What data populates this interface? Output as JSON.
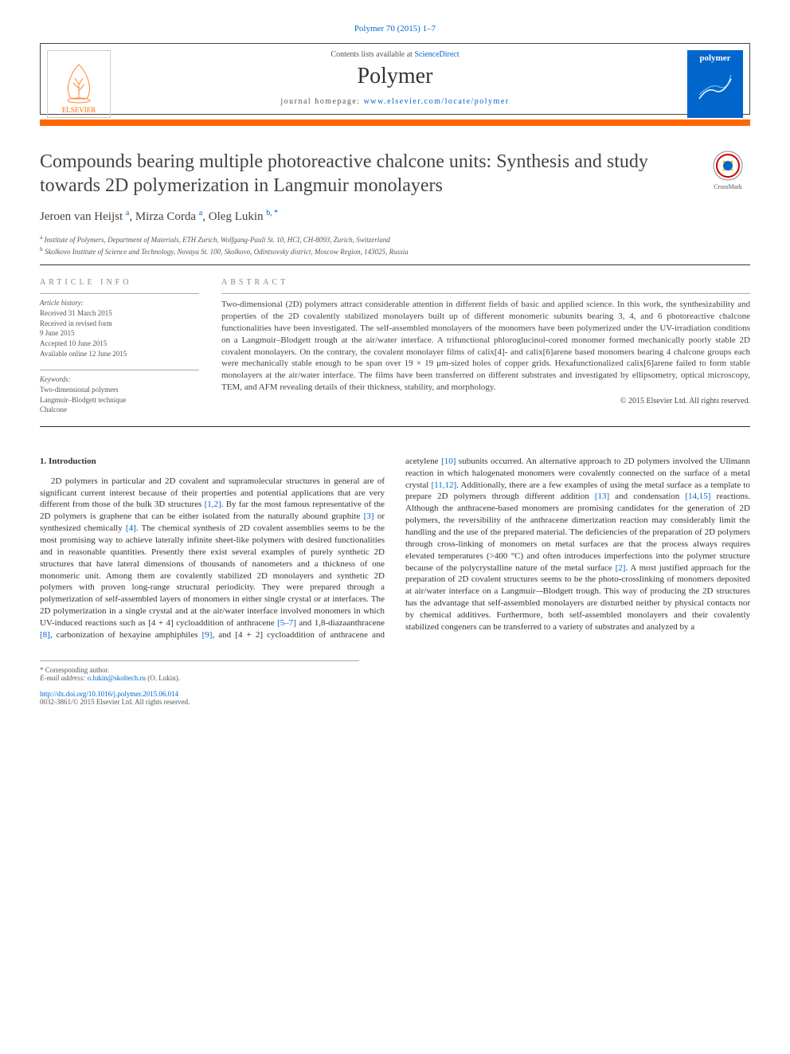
{
  "journal_ref": "Polymer 70 (2015) 1–7",
  "header": {
    "contents_prefix": "Contents lists available at ",
    "contents_link": "ScienceDirect",
    "journal_name": "Polymer",
    "homepage_prefix": "journal homepage: ",
    "homepage_link": "www.elsevier.com/locate/polymer",
    "elsevier_label": "ELSEVIER",
    "cover_title": "polymer"
  },
  "colors": {
    "link": "#0066cc",
    "accent_bar": "#ff6600",
    "text": "#333333",
    "muted": "#555555"
  },
  "title": "Compounds bearing multiple photoreactive chalcone units: Synthesis and study towards 2D polymerization in Langmuir monolayers",
  "crossmark_label": "CrossMark",
  "authors_html": "Jeroen van Heijst <sup>a</sup>, Mirza Corda <sup>a</sup>, Oleg Lukin <sup>b, *</sup>",
  "affiliations": {
    "a": "Institute of Polymers, Department of Materials, ETH Zurich, Wolfgang-Pauli St. 10, HCI, CH-8093, Zurich, Switzerland",
    "b": "Skolkovo Institute of Science and Technology, Novaya St. 100, Skolkovo, Odintsovsky district, Moscow Region, 143025, Russia"
  },
  "article_info": {
    "section_label": "ARTICLE INFO",
    "history_label": "Article history:",
    "history": [
      "Received 31 March 2015",
      "Received in revised form",
      "9 June 2015",
      "Accepted 10 June 2015",
      "Available online 12 June 2015"
    ],
    "keywords_label": "Keywords:",
    "keywords": [
      "Two-dimensional polymers",
      "Langmuir–Blodgett technique",
      "Chalcone"
    ]
  },
  "abstract": {
    "section_label": "ABSTRACT",
    "text": "Two-dimensional (2D) polymers attract considerable attention in different fields of basic and applied science. In this work, the synthesizability and properties of the 2D covalently stabilized monolayers built up of different monomeric subunits bearing 3, 4, and 6 photoreactive chalcone functionalities have been investigated. The self-assembled monolayers of the monomers have been polymerized under the UV-irradiation conditions on a Langmuir–Blodgett trough at the air/water interface. A trifunctional phloroglucinol-cored monomer formed mechanically poorly stable 2D covalent monolayers. On the contrary, the covalent monolayer films of calix[4]- and calix[6]arene based monomers bearing 4 chalcone groups each were mechanically stable enough to be span over 19 × 19 μm-sized holes of copper grids. Hexafunctionalized calix[6]arene failed to form stable monolayers at the air/water interface. The films have been transferred on different substrates and investigated by ellipsometry, optical microscopy, TEM, and AFM revealing details of their thickness, stability, and morphology.",
    "copyright": "© 2015 Elsevier Ltd. All rights reserved."
  },
  "body": {
    "section_number": "1.",
    "section_title": "Introduction",
    "paragraph": "2D polymers in particular and 2D covalent and supramolecular structures in general are of significant current interest because of their properties and potential applications that are very different from those of the bulk 3D structures [1,2]. By far the most famous representative of the 2D polymers is graphene that can be either isolated from the naturally abound graphite [3] or synthesized chemically [4]. The chemical synthesis of 2D covalent assemblies seems to be the most promising way to achieve laterally infinite sheet-like polymers with desired functionalities and in reasonable quantities. Presently there exist several examples of purely synthetic 2D structures that have lateral dimensions of thousands of nanometers and a thickness of one monomeric unit. Among them are covalently stabilized 2D monolayers and synthetic 2D polymers with proven long-range structural periodicity. They were prepared through a polymerization of self-assembled layers of monomers in either single crystal or at interfaces. The 2D polymerization in a single crystal and at the air/water interface involved monomers in which UV-induced reactions such as [4 + 4] cycloaddition of anthracene [5–7] and 1,8-diazaanthracene [8], carbonization of hexayine amphiphiles [9], and [4 + 2] cycloaddition of anthracene and acetylene [10] subunits occurred. An alternative approach to 2D polymers involved the Ullmann reaction in which halogenated monomers were covalently connected on the surface of a metal crystal [11,12]. Additionally, there are a few examples of using the metal surface as a template to prepare 2D polymers through different addition [13] and condensation [14,15] reactions. Although the anthracene-based monomers are promising candidates for the generation of 2D polymers, the reversibility of the anthracene dimerization reaction may considerably limit the handling and the use of the prepared material. The deficiencies of the preparation of 2D polymers through cross-linking of monomers on metal surfaces are that the process always requires elevated temperatures (>400 °C) and often introduces imperfections into the polymer structure because of the polycrystalline nature of the metal surface [2]. A most justified approach for the preparation of 2D covalent structures seems to be the photo-crosslinking of monomers deposited at air/water interface on a Langmuir–-Blodgett trough. This way of producing the 2D structures has the advantage that self-assembled monolayers are disturbed neither by physical contacts nor by chemical additives. Furthermore, both self-assembled monolayers and their covalently stabilized congeners can be transferred to a variety of substrates and analyzed by a"
  },
  "footnotes": {
    "corresponding": "* Corresponding author.",
    "email_label": "E-mail address:",
    "email": "o.lukin@skoltech.ru",
    "email_name": "(O. Lukin)."
  },
  "doi": "http://dx.doi.org/10.1016/j.polymer.2015.06.014",
  "issn_line": "0032-3861/© 2015 Elsevier Ltd. All rights reserved."
}
